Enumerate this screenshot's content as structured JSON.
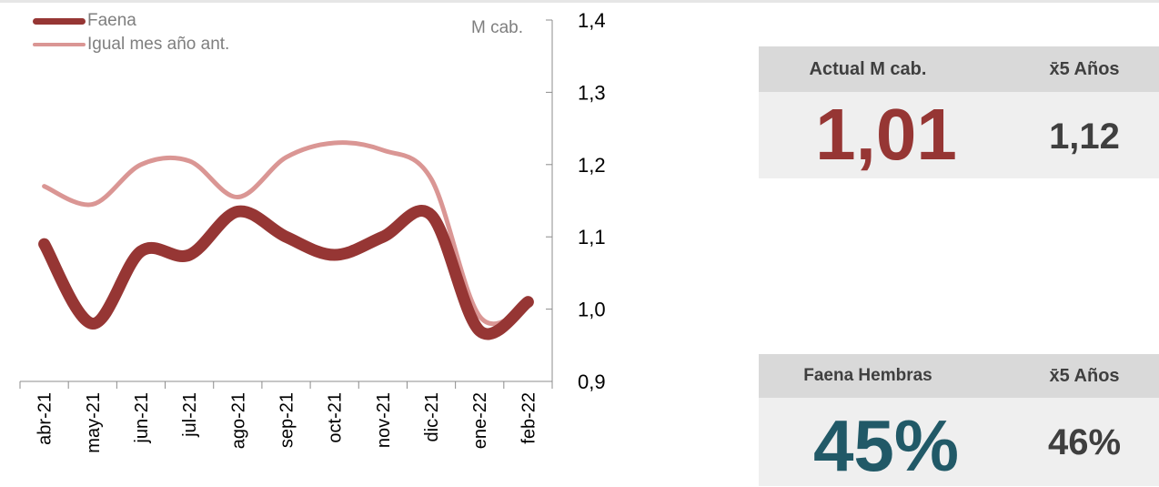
{
  "chart_data": {
    "type": "line",
    "categories": [
      "abr-21",
      "may-21",
      "jun-21",
      "jul-21",
      "ago-21",
      "sep-21",
      "oct-21",
      "nov-21",
      "dic-21",
      "ene-22",
      "feb-22"
    ],
    "ylabel": "M cab.",
    "ylim": [
      0.9,
      1.4
    ],
    "yticks": [
      "0,9",
      "1,0",
      "1,1",
      "1,2",
      "1,3",
      "1,4"
    ],
    "y_axis_side": "right",
    "legend_position": "top-left",
    "grid": false,
    "series": [
      {
        "name": "Faena",
        "color": "#963634",
        "values": [
          1.09,
          0.98,
          1.08,
          1.075,
          1.135,
          1.1,
          1.075,
          1.1,
          1.13,
          0.97,
          1.01
        ]
      },
      {
        "name": "Igual mes año ant.",
        "color": "#da9694",
        "values": [
          1.17,
          1.145,
          1.2,
          1.205,
          1.155,
          1.21,
          1.23,
          1.22,
          1.18,
          0.99,
          1.005
        ]
      }
    ]
  },
  "panels": {
    "top": {
      "header_left": "Actual M cab.",
      "header_right": "x̄5 Años",
      "value_main": "1,01",
      "value_main_color": "#963634",
      "value_avg": "1,12"
    },
    "bottom": {
      "header_left": "Faena Hembras",
      "header_right": "x̄5 Años",
      "value_main": "45%",
      "value_main_color": "#215967",
      "value_avg": "46%"
    }
  }
}
